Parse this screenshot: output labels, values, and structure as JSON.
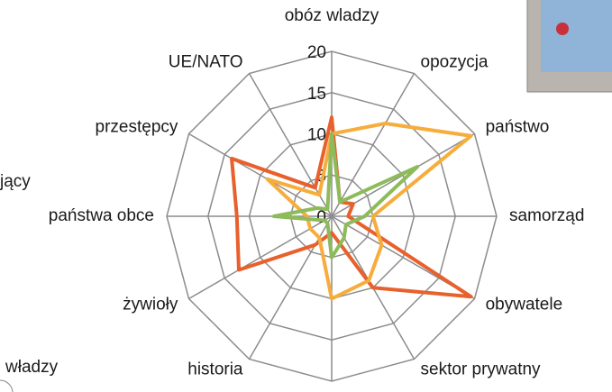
{
  "chart_data": {
    "type": "radar",
    "categories": [
      "obóz wladzy",
      "opozycja",
      "państwo",
      "samorząd",
      "obywatele",
      "sektor prywatny",
      null,
      "historia",
      "żywioły",
      "państwa obce",
      "przestępcy",
      "UE/NATO"
    ],
    "series": [
      {
        "color": "#e8602c",
        "values": [
          12,
          2,
          3,
          2,
          19.5,
          10,
          2,
          4,
          13,
          11.5,
          14,
          4
        ]
      },
      {
        "color": "#f6ad3c",
        "values": [
          10,
          13,
          19.5,
          5,
          7,
          9,
          10,
          3,
          3,
          3,
          9,
          3
        ]
      },
      {
        "color": "#8dbb5a",
        "values": [
          10,
          2,
          12,
          4,
          2,
          3,
          5,
          1,
          1,
          7,
          2,
          1
        ]
      }
    ],
    "ylim": [
      0,
      20
    ],
    "yticks": [
      0,
      5,
      10,
      15,
      20
    ],
    "grid": true
  },
  "cropped_texts": [
    "jący",
    "władzy"
  ]
}
